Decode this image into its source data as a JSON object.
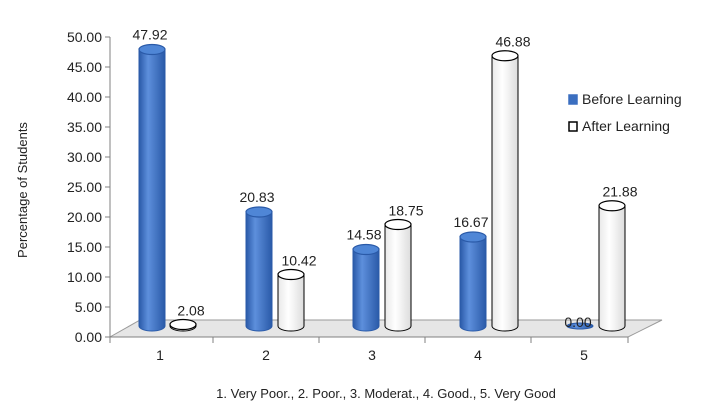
{
  "chart_data": {
    "type": "bar",
    "style": "3d-cylinder",
    "categories": [
      "1",
      "2",
      "3",
      "4",
      "5"
    ],
    "series": [
      {
        "name": "Before Learning",
        "values": [
          47.92,
          20.83,
          14.58,
          16.67,
          0.0
        ],
        "value_labels": [
          "47.92",
          "20.83",
          "14.58",
          "16.67",
          "0.00"
        ],
        "color": "#3b6fc0"
      },
      {
        "name": "After Learning",
        "values": [
          2.08,
          10.42,
          18.75,
          46.88,
          21.88
        ],
        "value_labels": [
          "2.08",
          "10.42",
          "18.75",
          "46.88",
          "21.88"
        ],
        "color": "#ffffff"
      }
    ],
    "xlabel": "1. Very Poor., 2. Poor., 3. Moderat., 4. Good., 5. Very Good",
    "ylabel": "Percentage of Students",
    "ylim": [
      0,
      50
    ],
    "yticks": [
      "0.00",
      "5.00",
      "10.00",
      "15.00",
      "20.00",
      "25.00",
      "30.00",
      "35.00",
      "40.00",
      "45.00",
      "50.00"
    ],
    "grid": false,
    "legend": "right"
  }
}
